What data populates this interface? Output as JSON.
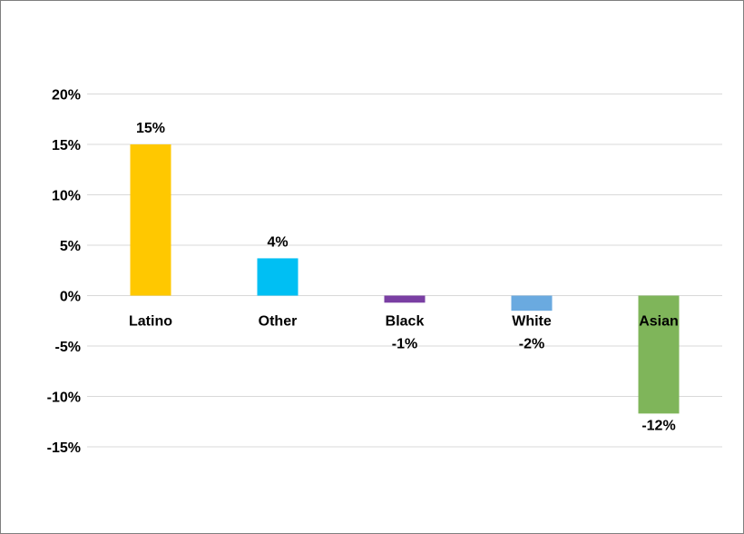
{
  "chart_data": {
    "type": "bar",
    "categories": [
      "Latino",
      "Other",
      "Black",
      "White",
      "Asian"
    ],
    "values": [
      15,
      3.7,
      -0.7,
      -1.5,
      -11.7
    ],
    "data_labels": [
      "15%",
      "4%",
      "-1%",
      "-2%",
      "-12%"
    ],
    "colors": [
      "#ffc800",
      "#00bff3",
      "#7a3fa3",
      "#6aaae0",
      "#7fb55a"
    ],
    "ylim": [
      -15,
      20
    ],
    "yticks": [
      20,
      15,
      10,
      5,
      0,
      -5,
      -10,
      -15
    ],
    "ytick_labels": [
      "20%",
      "15%",
      "10%",
      "5%",
      "0%",
      "-5%",
      "-10%",
      "-15%"
    ],
    "grid": true,
    "legend": "none"
  }
}
